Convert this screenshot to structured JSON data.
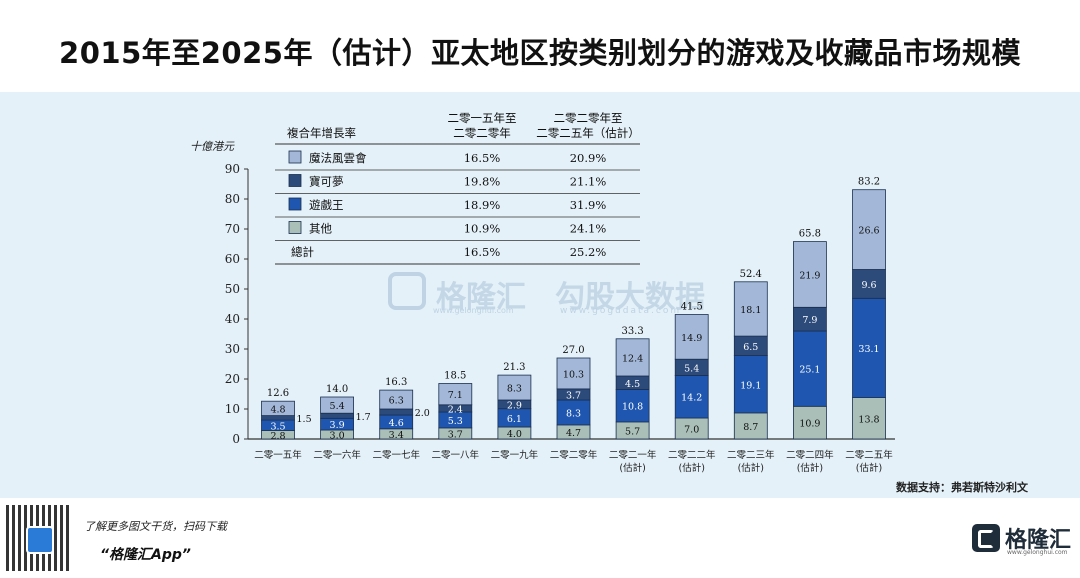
{
  "title": "2015年至2025年（估计）亚太地区按类别划分的游戏及收藏品市场规模",
  "source": "数据支持：弗若斯特沙利文",
  "watermark": {
    "brand": "格隆汇",
    "brand_url": "www.gelonghui.com",
    "partner": "勾股大数据",
    "partner_url": "www.gogudata.com"
  },
  "footer": {
    "line1": "了解更多图文干货，扫码下载",
    "app": "“格隆汇App”",
    "brand": "格隆汇",
    "brand_url": "www.gelonghui.com",
    "mini": "格隆汇"
  },
  "legend_table": {
    "header_label": "複合年增長率",
    "col1_header_line1": "二零一五年至",
    "col1_header_line2": "二零二零年",
    "col2_header_line1": "二零二零年至",
    "col2_header_line2": "二零二五年（估計）",
    "rows": [
      {
        "name": "魔法風雲會",
        "cagr1": "16.5%",
        "cagr2": "20.9%"
      },
      {
        "name": "寶可夢",
        "cagr1": "19.8%",
        "cagr2": "21.1%"
      },
      {
        "name": "遊戲王",
        "cagr1": "18.9%",
        "cagr2": "31.9%"
      },
      {
        "name": "其他",
        "cagr1": "10.9%",
        "cagr2": "24.1%"
      }
    ],
    "total": {
      "name": "總計",
      "cagr1": "16.5%",
      "cagr2": "25.2%"
    }
  },
  "chart_data": {
    "type": "bar",
    "stacked": true,
    "ylabel": "十億港元",
    "ylim": [
      0,
      90
    ],
    "yticks": [
      0,
      10,
      20,
      30,
      40,
      50,
      60,
      70,
      80,
      90
    ],
    "categories": [
      [
        "二零一五年"
      ],
      [
        "二零一六年"
      ],
      [
        "二零一七年"
      ],
      [
        "二零一八年"
      ],
      [
        "二零一九年"
      ],
      [
        "二零二零年"
      ],
      [
        "二零二一年",
        "(估計)"
      ],
      [
        "二零二二年",
        "(估計)"
      ],
      [
        "二零二三年",
        "(估計)"
      ],
      [
        "二零二四年",
        "(估計)"
      ],
      [
        "二零二五年",
        "(估計)"
      ]
    ],
    "series": [
      {
        "name": "其他",
        "color": "#a9bfb8",
        "values": [
          2.8,
          3.0,
          3.4,
          3.7,
          4.0,
          4.7,
          5.7,
          7.0,
          8.7,
          10.9,
          13.8
        ]
      },
      {
        "name": "遊戲王",
        "color": "#1f57b0",
        "values": [
          3.5,
          3.9,
          4.6,
          5.3,
          6.1,
          8.3,
          10.8,
          14.2,
          19.1,
          25.1,
          33.1
        ]
      },
      {
        "name": "寶可夢",
        "color": "#2c4a7a",
        "values": [
          1.5,
          1.7,
          2.0,
          2.4,
          2.9,
          3.7,
          4.5,
          5.4,
          6.5,
          7.9,
          9.6
        ]
      },
      {
        "name": "魔法風雲會",
        "color": "#a3b8d8",
        "values": [
          4.8,
          5.4,
          6.3,
          7.1,
          8.3,
          10.3,
          12.4,
          14.9,
          18.1,
          21.9,
          26.6
        ]
      }
    ],
    "totals": [
      12.6,
      14.0,
      16.3,
      18.5,
      21.3,
      27.0,
      33.3,
      41.5,
      52.4,
      65.8,
      83.2
    ]
  }
}
